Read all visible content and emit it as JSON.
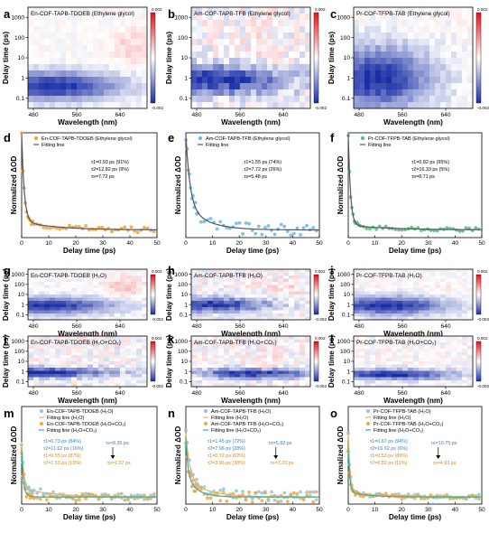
{
  "chart_data": [
    {
      "id": "a",
      "type": "heatmap",
      "title": "En-COF-TAPB-TDOEB (Ethylene glycol)",
      "xlabel": "Wavelength (nm)",
      "ylabel": "Delay time (ps)",
      "xticks": [
        "480",
        "560",
        "640"
      ],
      "yticks": [
        "0.1",
        "1",
        "10",
        "100",
        "1000"
      ],
      "colorbar": [
        "0.002",
        "-0.002"
      ]
    },
    {
      "id": "b",
      "type": "heatmap",
      "title": "Am-COF-TAPB-TFB (Ethylene glycol)",
      "xlabel": "Wavelength (nm)",
      "ylabel": "Delay time (ps)",
      "xticks": [
        "480",
        "560",
        "640"
      ],
      "yticks": [
        "0.1",
        "1",
        "10",
        "100",
        "1000"
      ],
      "colorbar": [
        "0.002",
        "-0.002"
      ]
    },
    {
      "id": "c",
      "type": "heatmap",
      "title": "Pr-COF-TFPB-TAB (Ethylene glycol)",
      "xlabel": "Wavelength (nm)",
      "ylabel": "Delay time (ps)",
      "xticks": [
        "480",
        "560",
        "640"
      ],
      "yticks": [
        "0.1",
        "1",
        "10",
        "100",
        "1000"
      ],
      "colorbar": [
        "0.002",
        "-0.002"
      ]
    },
    {
      "id": "d",
      "type": "scatter",
      "xlabel": "Delay time (ps)",
      "ylabel": "Normalized ΔOD",
      "xticks": [
        "0",
        "10",
        "20",
        "30",
        "40",
        "50"
      ],
      "xlim": [
        0,
        50
      ],
      "series": [
        {
          "name": "En-COF-TAPB-TDOEB (Ethylene glycol)",
          "color": "#f0a030"
        },
        {
          "name": "Fitting line",
          "color": "#555566"
        }
      ],
      "annotations": [
        "τ1=0.93 ps (91%)",
        "τ2=12.82 ps (9%)",
        "τs=7.72 ps"
      ]
    },
    {
      "id": "e",
      "type": "scatter",
      "xlabel": "Delay time (ps)",
      "ylabel": "Normalized ΔOD",
      "xticks": [
        "0",
        "10",
        "20",
        "30",
        "40",
        "50"
      ],
      "xlim": [
        0,
        50
      ],
      "series": [
        {
          "name": "Am-COF-TAPB-TFB (Ethylene glycol)",
          "color": "#6ab6e6"
        },
        {
          "name": "Fitting line",
          "color": "#555566"
        }
      ],
      "annotations": [
        "τ1=1.55 ps (74%)",
        "τ2=7.72 ps (26%)",
        "τs=5.48 ps"
      ]
    },
    {
      "id": "f",
      "type": "scatter",
      "xlabel": "Delay time (ps)",
      "ylabel": "Normalized ΔOD",
      "xticks": [
        "0",
        "10",
        "20",
        "30",
        "40",
        "50"
      ],
      "xlim": [
        0,
        50
      ],
      "series": [
        {
          "name": "Pr-COF-TFPB-TAB (Ethylene glycol)",
          "color": "#5cb87a"
        },
        {
          "name": "Fitting line",
          "color": "#555566"
        }
      ],
      "annotations": [
        "τ1=0.82 ps (95%)",
        "τ2=16.33 ps (5%)",
        "τs=8.71 ps"
      ]
    },
    {
      "id": "g",
      "type": "heatmap",
      "title": "En-COF-TAPB-TDOEB (H₂O)",
      "xlabel": "Wavelength (nm)",
      "ylabel": "Delay time (ps)",
      "xticks": [
        "480",
        "560",
        "640"
      ],
      "yticks": [
        "0.1",
        "1",
        "10",
        "100",
        "1000"
      ],
      "colorbar": [
        "0.002",
        "-0.002"
      ]
    },
    {
      "id": "h",
      "type": "heatmap",
      "title": "Am-COF-TAPB-TFB (H₂O)",
      "xlabel": "Wavelength (nm)",
      "ylabel": "Delay time (ps)",
      "xticks": [
        "480",
        "560",
        "640"
      ],
      "yticks": [
        "0.1",
        "1",
        "10",
        "100",
        "1000"
      ],
      "colorbar": [
        "0.002",
        "-0.002"
      ]
    },
    {
      "id": "i",
      "type": "heatmap",
      "title": "Pr-COF-TFPB-TAB (H₂O)",
      "xlabel": "Wavelength (nm)",
      "ylabel": "Delay time (ps)",
      "xticks": [
        "480",
        "560",
        "640"
      ],
      "yticks": [
        "0.1",
        "1",
        "10",
        "100",
        "1000"
      ],
      "colorbar": [
        "0.002",
        "-0.002"
      ]
    },
    {
      "id": "j",
      "type": "heatmap",
      "title": "En-COF-TAPB-TDOEB (H₂O+CO₂)",
      "xlabel": "Wavelength (nm)",
      "ylabel": "Delay time (ps)",
      "xticks": [
        "480",
        "560",
        "640"
      ],
      "yticks": [
        "0.1",
        "1",
        "10",
        "100",
        "1000"
      ],
      "colorbar": [
        "0.002",
        "-0.002"
      ]
    },
    {
      "id": "k",
      "type": "heatmap",
      "title": "Am-COF-TAPB-TFB (H₂O+CO₂)",
      "xlabel": "Wavelength (nm)",
      "ylabel": "Delay time (ps)",
      "xticks": [
        "480",
        "560",
        "640"
      ],
      "yticks": [
        "0.1",
        "1",
        "10",
        "100",
        "1000"
      ],
      "colorbar": [
        "0.002",
        "-0.002"
      ]
    },
    {
      "id": "l",
      "type": "heatmap",
      "title": "Pr-COF-TFPB-TAB (H₂O+CO₂)",
      "xlabel": "Wavelength (nm)",
      "ylabel": "Delay time (ps)",
      "xticks": [
        "480",
        "560",
        "640"
      ],
      "yticks": [
        "0.1",
        "1",
        "10",
        "100",
        "1000"
      ],
      "colorbar": [
        "0.002",
        "-0.002"
      ]
    },
    {
      "id": "m",
      "type": "scatter",
      "xlabel": "Delay time (ps)",
      "ylabel": "Normalized ΔOD",
      "xticks": [
        "0",
        "10",
        "20",
        "30",
        "40",
        "50"
      ],
      "xlim": [
        0,
        50
      ],
      "series": [
        {
          "name": "En-COF-TAPB-TDOEB (H₂O)",
          "color": "#8ec3ea"
        },
        {
          "name": "Fitting line (H₂O)",
          "color": "#e8b070"
        },
        {
          "name": "En-COF-TAPB-TDOEB (H₂O+CO₂)",
          "color": "#f3a640"
        },
        {
          "name": "Fitting line (H₂O+CO₂)",
          "color": "#3fae8f"
        }
      ],
      "annotations": [
        {
          "text": "τ1=0.73 ps (84%)",
          "color": "#3a7fc4"
        },
        {
          "text": "τ2=11.62 ps (16%)",
          "color": "#3a7fc4"
        },
        {
          "text": "τ1=0.55 ps (87%)",
          "color": "#e08820"
        },
        {
          "text": "τ2=1.53 ps (13%)",
          "color": "#e08820"
        },
        {
          "text": "τs=8.95 ps",
          "color": "#3a7fc4"
        },
        {
          "text": "τs=1.37 ps",
          "color": "#e08820"
        }
      ]
    },
    {
      "id": "n",
      "type": "scatter",
      "xlabel": "Delay time (ps)",
      "ylabel": "Normalized ΔOD",
      "xticks": [
        "0",
        "10",
        "20",
        "30",
        "40",
        "50"
      ],
      "xlim": [
        0,
        50
      ],
      "series": [
        {
          "name": "Am-COF-TAPB-TFB (H₂O)",
          "color": "#8ec3ea"
        },
        {
          "name": "Fitting line (H₂O)",
          "color": "#e8b070"
        },
        {
          "name": "Am-COF-TAPB-TFB (H₂O+CO₂)",
          "color": "#f3a640"
        },
        {
          "name": "Fitting line (H₂O+CO₂)",
          "color": "#3fae8f"
        }
      ],
      "annotations": [
        {
          "text": "τ1=1.45 ps (72%)",
          "color": "#3a7fc4"
        },
        {
          "text": "τ2=7.96 ps (28%)",
          "color": "#3a7fc4"
        },
        {
          "text": "τ1=0.72 ps (62%)",
          "color": "#e08820"
        },
        {
          "text": "τ2=3.96 ps (38%)",
          "color": "#e08820"
        },
        {
          "text": "τs=5.82 ps",
          "color": "#3a7fc4"
        },
        {
          "text": "τs=3.23 ps",
          "color": "#e08820"
        }
      ]
    },
    {
      "id": "o",
      "type": "scatter",
      "xlabel": "Delay time (ps)",
      "ylabel": "Normalized ΔOD",
      "xticks": [
        "0",
        "10",
        "20",
        "30",
        "40",
        "50"
      ],
      "xlim": [
        0,
        50
      ],
      "series": [
        {
          "name": "Pr-COF-TFPB-TAB (H₂O)",
          "color": "#8ec3ea"
        },
        {
          "name": "Fitting line (H₂O)",
          "color": "#e8b070"
        },
        {
          "name": "Pr-COF-TFPB-TAB (H₂O+CO₂)",
          "color": "#f3a640"
        },
        {
          "name": "Fitting line (H₂O+CO₂)",
          "color": "#3fae8f"
        }
      ],
      "annotations": [
        {
          "text": "τ1=0.67 ps (94%)",
          "color": "#3a7fc4"
        },
        {
          "text": "τ2=16.62 ps (6%)",
          "color": "#3a7fc4"
        },
        {
          "text": "τ1=0.53 ps (89%)",
          "color": "#e08820"
        },
        {
          "text": "τ2=6.82 ps (11%)",
          "color": "#e08820"
        },
        {
          "text": "τs=10.75 ps",
          "color": "#3a7fc4"
        },
        {
          "text": "τs=4.93 ps",
          "color": "#e08820"
        }
      ]
    }
  ]
}
